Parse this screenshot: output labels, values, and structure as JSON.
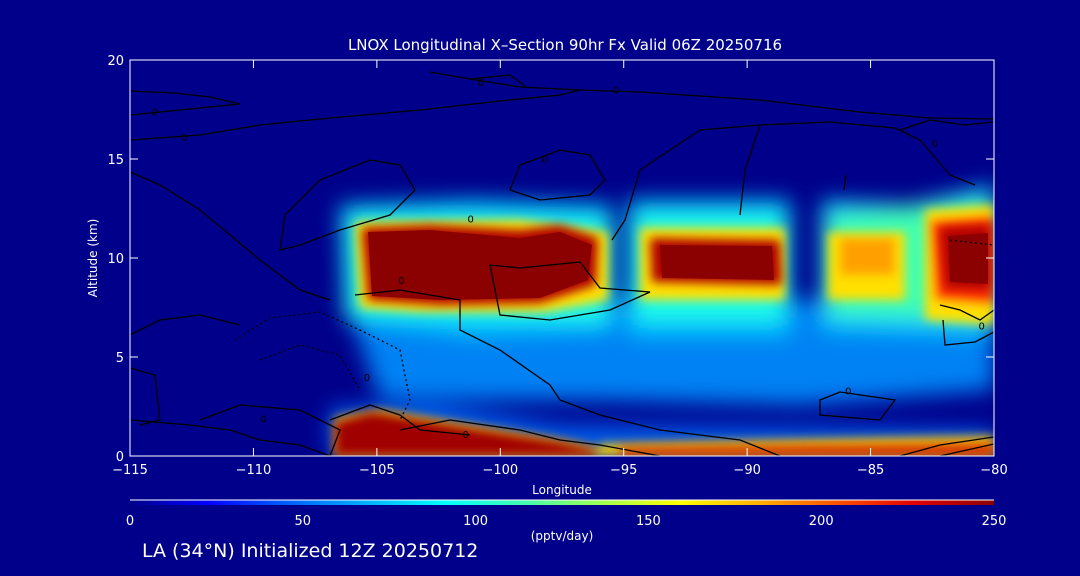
{
  "chart_data": {
    "type": "heatmap",
    "title": "LNOX Longitudinal X–Section 90hr  Fx Valid 06Z 20250716",
    "xlabel": "Longitude",
    "ylabel": "Altitude (km)",
    "xlim": [
      -115,
      -80
    ],
    "ylim": [
      0,
      20
    ],
    "xticks": [
      -115,
      -110,
      -105,
      -100,
      -95,
      -90,
      -85,
      -80
    ],
    "xtick_labels": [
      "−115",
      "−110",
      "−105",
      "−100",
      "−95",
      "−90",
      "−85",
      "−80"
    ],
    "yticks": [
      0,
      5,
      10,
      15,
      20
    ],
    "ytick_labels": [
      "0",
      "5",
      "10",
      "15",
      "20"
    ],
    "colorbar": {
      "min": 0,
      "max": 250,
      "ticks": [
        0,
        50,
        100,
        150,
        200,
        250
      ],
      "tick_labels": [
        "0",
        "50",
        "100",
        "150",
        "200",
        "250"
      ],
      "label": "(pptv/day)",
      "colors": [
        "#00008a",
        "#0000ff",
        "#0060ff",
        "#00b0ff",
        "#00ffff",
        "#40ffb0",
        "#a0ff50",
        "#ffff00",
        "#ffb000",
        "#ff5000",
        "#e00000",
        "#8b0000"
      ]
    },
    "lnox_maxima": [
      {
        "lon_range": [
          -106.5,
          -95.5
        ],
        "alt_range": [
          7.5,
          11.8
        ],
        "value": 250
      },
      {
        "lon_range": [
          -94,
          -88.5
        ],
        "alt_range": [
          8.8,
          11.0
        ],
        "value": 250
      },
      {
        "lon_range": [
          -86.5,
          -83
        ],
        "alt_range": [
          9.2,
          10.8
        ],
        "value": 200
      },
      {
        "lon_range": [
          -82.5,
          -80
        ],
        "alt_range": [
          8.5,
          11.0
        ],
        "value": 250
      },
      {
        "lon_range": [
          -106.5,
          -97
        ],
        "alt_range": [
          0.5,
          2.0
        ],
        "value": 250
      },
      {
        "lon_range": [
          -94,
          -80
        ],
        "alt_range": [
          0.2,
          0.9
        ],
        "value": 220
      }
    ],
    "contour_labels": [
      {
        "text": "0",
        "lon": -114,
        "alt": 17.4
      },
      {
        "text": "0",
        "lon": -112.8,
        "alt": 16.1
      },
      {
        "text": "0",
        "lon": -100.8,
        "alt": 18.9
      },
      {
        "text": "0",
        "lon": -95.3,
        "alt": 18.5
      },
      {
        "text": "0",
        "lon": -101.2,
        "alt": 12.0
      },
      {
        "text": "0",
        "lon": -98.2,
        "alt": 15.0
      },
      {
        "text": "0",
        "lon": -104,
        "alt": 8.9
      },
      {
        "text": "0",
        "lon": -109.6,
        "alt": 1.9
      },
      {
        "text": "0",
        "lon": -105.4,
        "alt": 4.0
      },
      {
        "text": "0",
        "lon": -101.4,
        "alt": 1.1
      },
      {
        "text": "0",
        "lon": -85.9,
        "alt": 3.3
      },
      {
        "text": "0",
        "lon": -80.5,
        "alt": 6.6
      },
      {
        "text": "0",
        "lon": -82.4,
        "alt": 15.8
      }
    ]
  },
  "footer": {
    "text": "LA (34°N) Initialized 12Z 20250712"
  }
}
